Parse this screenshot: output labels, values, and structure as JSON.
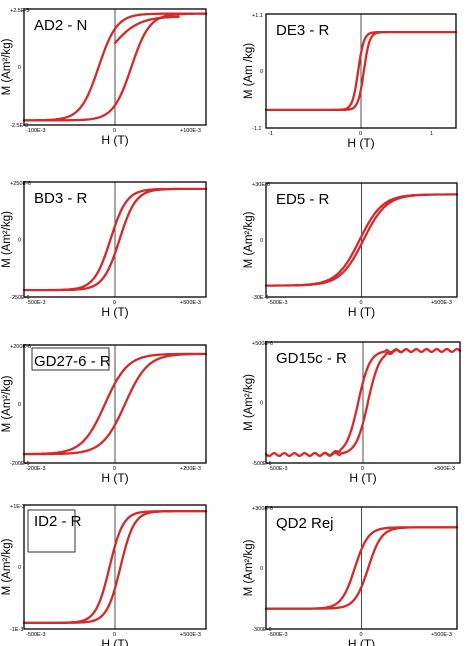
{
  "curve_color": "#d42a2a",
  "axis_color": "#000000",
  "chart_data": [
    {
      "type": "line",
      "label": "AD2 - N",
      "ylabel": "M (Am²/kg)",
      "xlabel": "H (T)",
      "xlim": [
        -0.1,
        0.1
      ],
      "ylim": [
        -2.5,
        2.5
      ],
      "label_box": false,
      "x_ticks": [
        "-100E-3",
        "0",
        "+100E-3"
      ],
      "y_ticks": [
        "+2.5E-3",
        "0",
        "-2.5E-3"
      ],
      "loop": {
        "Ms": 2.3,
        "Hc": 0.018,
        "width": 0.02,
        "plateau": 0.08,
        "extra_branch": true
      }
    },
    {
      "type": "line",
      "label": "DE3 - R",
      "ylabel": "M (Am /kg)",
      "xlabel": "H (T)",
      "xlim": [
        -1,
        1
      ],
      "ylim": [
        -1.1,
        1.1
      ],
      "label_box": false,
      "x_ticks": [
        "-1",
        "0",
        "1"
      ],
      "y_ticks": [
        "+1.1",
        "0",
        "-1.1"
      ],
      "loop": {
        "Ms": 0.75,
        "Hc": 0.03,
        "width": 0.06,
        "plateau": 0.0
      }
    },
    {
      "type": "line",
      "label": "BD3 - R",
      "ylabel": "M (Am²/kg)",
      "xlabel": "H (T)",
      "xlim": [
        -0.5,
        0.5
      ],
      "ylim": [
        -250,
        250
      ],
      "label_box": false,
      "x_ticks": [
        "-500E-3",
        "0",
        "+500E-3"
      ],
      "y_ticks": [
        "+250E-6",
        "0",
        "-250E-6"
      ],
      "loop": {
        "Ms": 220,
        "Hc": 0.025,
        "width": 0.09,
        "plateau": 0.0
      }
    },
    {
      "type": "line",
      "label": "ED5 - R",
      "ylabel": "M (Am²/kg)",
      "xlabel": "H (T)",
      "xlim": [
        -0.5,
        0.5
      ],
      "ylim": [
        -30,
        30
      ],
      "label_box": false,
      "x_ticks": [
        "-500E-3",
        "0",
        "+500E-3"
      ],
      "y_ticks": [
        "+30E-6",
        "0",
        "-30E-6"
      ],
      "loop": {
        "Ms": 24,
        "Hc": 0.01,
        "width": 0.12,
        "plateau": 0.0
      }
    },
    {
      "type": "line",
      "label": "GD27-6 - R",
      "ylabel": "M (Am²/kg)",
      "xlabel": "H (T)",
      "xlim": [
        -0.2,
        0.2
      ],
      "ylim": [
        -200,
        200
      ],
      "label_box": true,
      "x_ticks": [
        "-200E-3",
        "0",
        "+200E-3"
      ],
      "y_ticks": [
        "+200E-6",
        "0",
        "-200E-6"
      ],
      "loop": {
        "Ms": 170,
        "Hc": 0.022,
        "width": 0.05,
        "plateau": 0.0
      }
    },
    {
      "type": "line",
      "label": "GD15c - R",
      "ylabel": "M (Am²/kg)",
      "xlabel": "H (T)",
      "xlim": [
        -0.5,
        0.5
      ],
      "ylim": [
        -500,
        500
      ],
      "label_box": false,
      "x_ticks": [
        "-500E-3",
        "0",
        "+500E-3"
      ],
      "y_ticks": [
        "+500E-6",
        "0",
        "-500E-6"
      ],
      "loop": {
        "Ms": 430,
        "Hc": 0.025,
        "width": 0.06,
        "plateau": 0.0,
        "wavy": true
      }
    },
    {
      "type": "line",
      "label": "ID2 - R",
      "ylabel": "M (Am²/kg)",
      "xlabel": "H (T)",
      "xlim": [
        -0.5,
        0.5
      ],
      "ylim": [
        -1,
        1
      ],
      "label_box": true,
      "x_ticks": [
        "-500E-3",
        "0",
        "+500E-3"
      ],
      "y_ticks": [
        "+1E-3",
        "0",
        "-1E-3"
      ],
      "loop": {
        "Ms": 0.9,
        "Hc": 0.03,
        "width": 0.075,
        "plateau": 0.0
      }
    },
    {
      "type": "line",
      "label": "QD2 Rej",
      "ylabel": "M (Am²/kg)",
      "xlabel": "H (T)",
      "xlim": [
        -0.5,
        0.5
      ],
      "ylim": [
        -300,
        300
      ],
      "label_box": false,
      "x_ticks": [
        "-500E-3",
        "0",
        "+500E-3"
      ],
      "y_ticks": [
        "+300E-6",
        "0",
        "-300E-6"
      ],
      "loop": {
        "Ms": 200,
        "Hc": 0.035,
        "width": 0.07,
        "plateau": 0.0
      }
    }
  ]
}
